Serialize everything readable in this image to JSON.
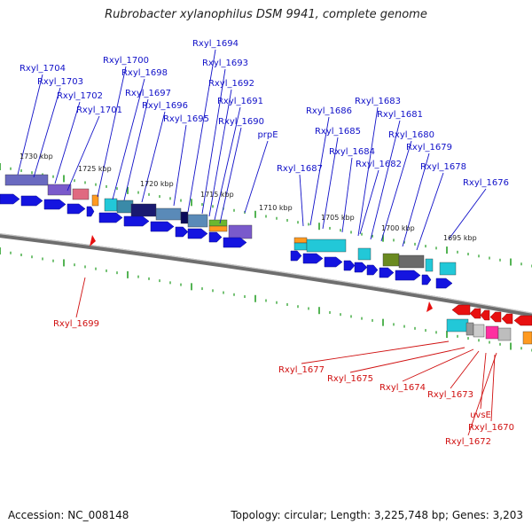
{
  "title": "Rubrobacter xylanophilus DSM 9941, complete genome",
  "accession": "Accession: NC_008148",
  "summary": "Topology: circular; Length: 3,225,748 bp; Genes: 3,203",
  "colors": {
    "forward_label": "#1010c8",
    "reverse_label": "#d01010",
    "forward_arrow": "#1414e0",
    "reverse_arrow": "#e81010",
    "tick": "#1a9a1a",
    "backbone": "#8a8a8a"
  },
  "ruler_ticks": [
    "1730 kbp",
    "1725 kbp",
    "1720 kbp",
    "1715 kbp",
    "1710 kbp",
    "1705 kbp",
    "1700 kbp",
    "1695 kbp"
  ],
  "forward_genes": [
    "Rxyl_1704",
    "Rxyl_1703",
    "Rxyl_1702",
    "Rxyl_1701",
    "Rxyl_1700",
    "Rxyl_1698",
    "Rxyl_1697",
    "Rxyl_1696",
    "Rxyl_1695",
    "Rxyl_1694",
    "Rxyl_1693",
    "Rxyl_1692",
    "Rxyl_1691",
    "Rxyl_1690",
    "prpE",
    "Rxyl_1687",
    "Rxyl_1686",
    "Rxyl_1685",
    "Rxyl_1684",
    "Rxyl_1683",
    "Rxyl_1681",
    "Rxyl_1682",
    "Rxyl_1680",
    "Rxyl_1679",
    "Rxyl_1678",
    "Rxyl_1676"
  ],
  "reverse_genes": [
    "Rxyl_1699",
    "Rxyl_1677",
    "Rxyl_1675",
    "Rxyl_1674",
    "Rxyl_1673",
    "uvsE",
    "Rxyl_1670",
    "Rxyl_1672"
  ]
}
